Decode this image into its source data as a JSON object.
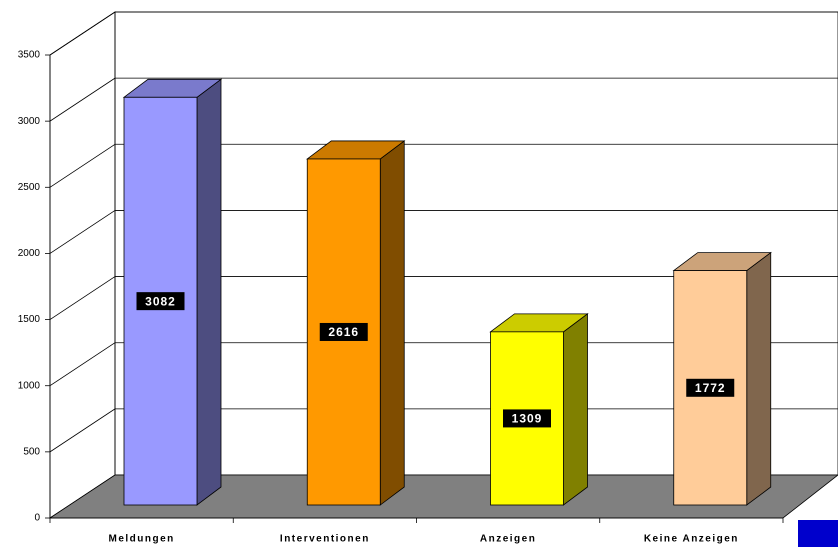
{
  "chart_data": {
    "type": "bar3d",
    "categories": [
      "Meldungen",
      "Interventionen",
      "Anzeigen",
      "Keine Anzeigen"
    ],
    "values": [
      3082,
      2616,
      1309,
      1772
    ],
    "colors": [
      "#9999ff",
      "#ff9900",
      "#ffff00",
      "#ffcc99"
    ],
    "ylim": [
      0,
      3500
    ],
    "yticks": [
      0,
      500,
      1000,
      1500,
      2000,
      2500,
      3000,
      3500
    ],
    "grid": true
  }
}
